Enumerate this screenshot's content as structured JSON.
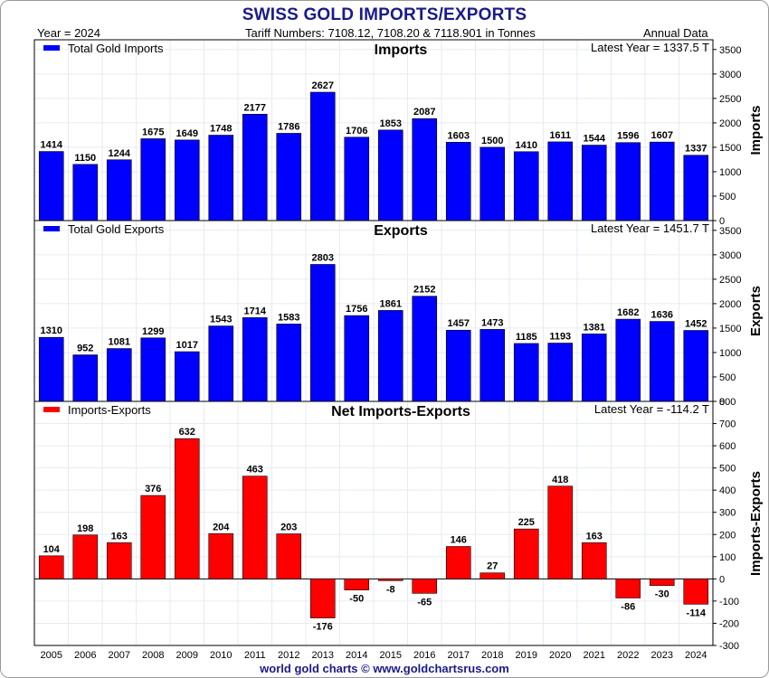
{
  "title": "SWISS GOLD IMPORTS/EXPORTS",
  "header": {
    "year": "Year = 2024",
    "tariff": "Tariff Numbers: 7108.12, 7108.20 & 7118.901 in Tonnes",
    "frequency": "Annual Data"
  },
  "footer": "world gold charts © www.goldchartsrus.com",
  "colors": {
    "title": "#1a1a8c",
    "imports": "#0000ff",
    "exports": "#0000ff",
    "net": "#ff0000"
  },
  "chart_data": [
    {
      "type": "bar",
      "title": "Imports",
      "ylabel": "Imports",
      "legend": "Total Gold Imports",
      "latest": "Latest Year = 1337.5 T",
      "categories": [
        "2005",
        "2006",
        "2007",
        "2008",
        "2009",
        "2010",
        "2011",
        "2012",
        "2013",
        "2014",
        "2015",
        "2016",
        "2017",
        "2018",
        "2019",
        "2020",
        "2021",
        "2022",
        "2023",
        "2024"
      ],
      "values": [
        1414,
        1150,
        1244,
        1675,
        1649,
        1748,
        2177,
        1786,
        2627,
        1706,
        1853,
        2087,
        1603,
        1500,
        1410,
        1611,
        1544,
        1596,
        1607,
        1337
      ],
      "ylim": [
        0,
        3700
      ],
      "yticks": [
        0,
        500,
        1000,
        1500,
        2000,
        2500,
        3000,
        3500
      ]
    },
    {
      "type": "bar",
      "title": "Exports",
      "ylabel": "Exports",
      "legend": "Total Gold Exports",
      "latest": "Latest Year = 1451.7 T",
      "categories": [
        "2005",
        "2006",
        "2007",
        "2008",
        "2009",
        "2010",
        "2011",
        "2012",
        "2013",
        "2014",
        "2015",
        "2016",
        "2017",
        "2018",
        "2019",
        "2020",
        "2021",
        "2022",
        "2023",
        "2024"
      ],
      "values": [
        1310,
        952,
        1081,
        1299,
        1017,
        1543,
        1714,
        1583,
        2803,
        1756,
        1861,
        2152,
        1457,
        1473,
        1185,
        1193,
        1381,
        1682,
        1636,
        1452
      ],
      "ylim": [
        0,
        3700
      ],
      "yticks": [
        0,
        500,
        1000,
        1500,
        2000,
        2500,
        3000,
        3500
      ]
    },
    {
      "type": "bar",
      "title": "Net Imports-Exports",
      "ylabel": "Imports-Exports",
      "legend": "Imports-Exports",
      "latest": "Latest Year = -114.2 T",
      "categories": [
        "2005",
        "2006",
        "2007",
        "2008",
        "2009",
        "2010",
        "2011",
        "2012",
        "2013",
        "2014",
        "2015",
        "2016",
        "2017",
        "2018",
        "2019",
        "2020",
        "2021",
        "2022",
        "2023",
        "2024"
      ],
      "values": [
        104,
        198,
        163,
        376,
        632,
        204,
        463,
        203,
        -176,
        -50,
        -8,
        -65,
        146,
        27,
        225,
        418,
        163,
        -86,
        -30,
        -114
      ],
      "ylim": [
        -300,
        800
      ],
      "yticks": [
        -300,
        -200,
        -100,
        0,
        100,
        200,
        300,
        400,
        500,
        600,
        700,
        800
      ]
    }
  ]
}
